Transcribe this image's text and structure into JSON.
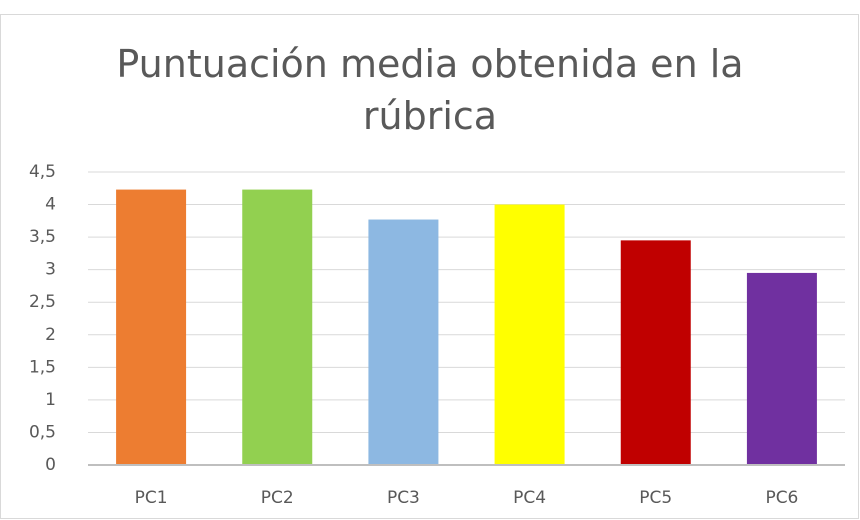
{
  "chart_data": {
    "type": "bar",
    "title": "Puntuación media obtenida en la rúbrica",
    "categories": [
      "PC1",
      "PC2",
      "PC3",
      "PC4",
      "PC5",
      "PC6"
    ],
    "values": [
      4.23,
      4.23,
      3.77,
      4.0,
      3.45,
      2.95
    ],
    "colors": [
      "#ed7d31",
      "#92d050",
      "#8db8e2",
      "#ffff00",
      "#c00000",
      "#7030a0"
    ],
    "ylim": [
      0,
      4.5
    ],
    "yticks": [
      0,
      {
        "value": 0.5,
        "label": "0,5"
      },
      1,
      {
        "value": 1.5,
        "label": "1,5"
      },
      2,
      {
        "value": 2.5,
        "label": "2,5"
      },
      3,
      {
        "value": 3.5,
        "label": "3,5"
      },
      4,
      {
        "value": 4.5,
        "label": "4,5"
      }
    ],
    "grid": true
  }
}
